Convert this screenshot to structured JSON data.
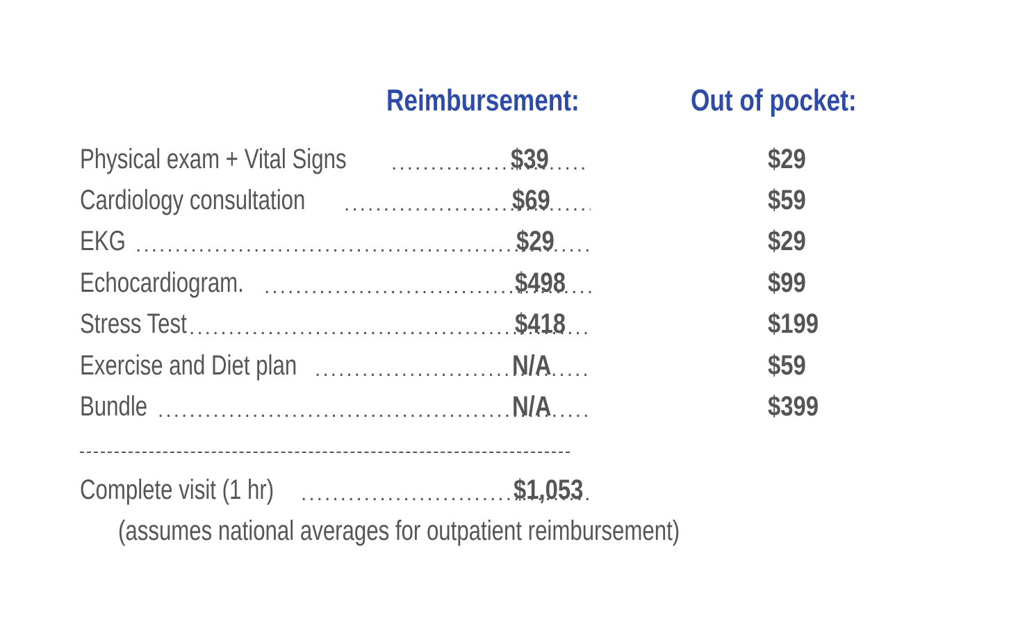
{
  "headers": {
    "reimbursement": "Reimbursement:",
    "out_of_pocket": "Out of pocket:"
  },
  "rows": [
    {
      "label": "Physical exam + Vital Signs",
      "reimbursement": "$39",
      "out_of_pocket": "$29"
    },
    {
      "label": "Cardiology consultation",
      "reimbursement": "$69",
      "out_of_pocket": "$59"
    },
    {
      "label": "EKG",
      "reimbursement": "$29",
      "out_of_pocket": "$29"
    },
    {
      "label": "Echocardiogram.",
      "reimbursement": "$498",
      "out_of_pocket": "$99"
    },
    {
      "label": "Stress Test",
      "reimbursement": "$418",
      "out_of_pocket": "$199"
    },
    {
      "label": "Exercise and Diet plan",
      "reimbursement": "N/A",
      "out_of_pocket": "$59"
    },
    {
      "label": "Bundle",
      "reimbursement": "N/A",
      "out_of_pocket": "$399"
    }
  ],
  "total": {
    "label": "Complete visit (1 hr)",
    "reimbursement": "$1,053"
  },
  "footnote": "(assumes national averages for outpatient reimbursement)",
  "colors": {
    "header": "#2f4ba8",
    "text": "#555555"
  }
}
